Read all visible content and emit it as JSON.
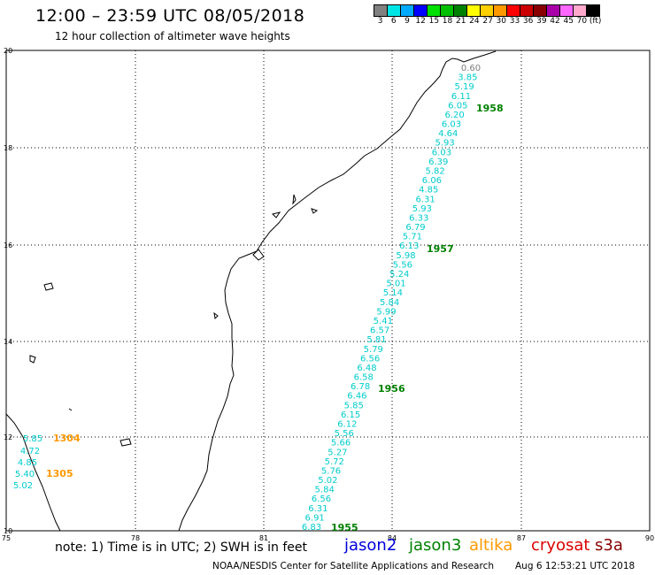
{
  "header": {
    "title": "12:00 – 23:59 UTC 08/05/2018",
    "subtitle": "12 hour collection of altimeter wave heights"
  },
  "legend": {
    "colors": [
      "#808080",
      "#00e6e6",
      "#00aaff",
      "#0000ff",
      "#00e000",
      "#00c000",
      "#008000",
      "#ffff00",
      "#ffd000",
      "#ff9900",
      "#ff0000",
      "#cc0000",
      "#880000",
      "#aa00aa",
      "#ff66ff",
      "#ffaacc",
      "#000000"
    ],
    "labels": [
      "3",
      "6",
      "9",
      "12",
      "15",
      "18",
      "21",
      "24",
      "27",
      "30",
      "33",
      "36",
      "39",
      "42",
      "45",
      "70",
      "(ft)"
    ]
  },
  "map": {
    "lat_labels": [
      "20",
      "18",
      "16",
      "14",
      "12",
      "10"
    ],
    "lon_labels": [
      "75",
      "78",
      "81",
      "84",
      "87",
      "90"
    ],
    "track_1955": [
      "0.60",
      "3.85",
      "5.19",
      "6.11",
      "6.05",
      "6.20",
      "6.03",
      "4.64",
      "5.93",
      "6.03",
      "6.39",
      "5.82",
      "6.06",
      "4.85",
      "6.31",
      "5.93",
      "6.33",
      "6.79",
      "5.71",
      "6.13",
      "5.98",
      "5.56",
      "5.24",
      "5.01",
      "5.14",
      "5.84",
      "5.99",
      "5.41",
      "6.57",
      "5.81",
      "5.79",
      "6.56",
      "6.48",
      "6.58",
      "6.78",
      "6.46",
      "5.85",
      "6.15",
      "6.12",
      "5.56",
      "5.66",
      "5.27",
      "5.72",
      "5.76",
      "5.02",
      "5.84",
      "6.56",
      "6.31",
      "6.91",
      "6.83"
    ],
    "track_1305": [
      "5.85",
      "4.72",
      "4.85",
      "5.40",
      "5.02"
    ],
    "time_labels": {
      "t1958": "1958",
      "t1957": "1957",
      "t1956": "1956",
      "t1955": "1955",
      "t1304": "1304",
      "t1305": "1305"
    }
  },
  "footer": {
    "note": "note: 1) Time is in UTC; 2) SWH is in feet",
    "satellites": {
      "jason2": "jason2",
      "jason3": "jason3",
      "altika": "altika",
      "cryosat": "cryosat",
      "s3a": "s3a"
    },
    "credit": "NOAA/NESDIS Center for Satellite Applications and Research",
    "timestamp": "Aug  6 12:53:21 UTC 2018"
  }
}
